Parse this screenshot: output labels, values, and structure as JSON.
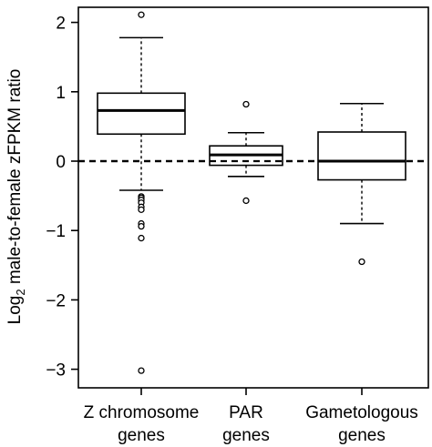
{
  "chart_data": {
    "type": "boxplot",
    "ylabel_main": "Log",
    "ylabel_sub": "2",
    "ylabel_rest": " male-to-female zFPKM ratio",
    "ylim": [
      -3.2,
      2.2
    ],
    "yticks": [
      2,
      1,
      0,
      -1,
      -2,
      -3
    ],
    "yticklabels": [
      "2",
      "1",
      "0",
      "−1",
      "−2",
      "−3"
    ],
    "reference_line": 0,
    "categories": [
      {
        "line1": "Z chromosome",
        "line2": "genes"
      },
      {
        "line1": "PAR",
        "line2": "genes"
      },
      {
        "line1": "Gametologous",
        "line2": "genes"
      }
    ],
    "boxes": [
      {
        "whisker_low": -0.42,
        "q1": 0.39,
        "median": 0.73,
        "q3": 0.98,
        "whisker_high": 1.78,
        "outliers": [
          2.11,
          -0.51,
          -0.53,
          -0.56,
          -0.6,
          -0.66,
          -0.7,
          -0.9,
          -0.94,
          -1.11,
          -3.02
        ]
      },
      {
        "whisker_low": -0.22,
        "q1": -0.06,
        "median": 0.09,
        "q3": 0.22,
        "whisker_high": 0.41,
        "outliers": [
          0.82,
          -0.57
        ]
      },
      {
        "whisker_low": -0.9,
        "q1": -0.27,
        "median": 0.0,
        "q3": 0.42,
        "whisker_high": 0.83,
        "outliers": [
          -1.45
        ]
      }
    ]
  }
}
